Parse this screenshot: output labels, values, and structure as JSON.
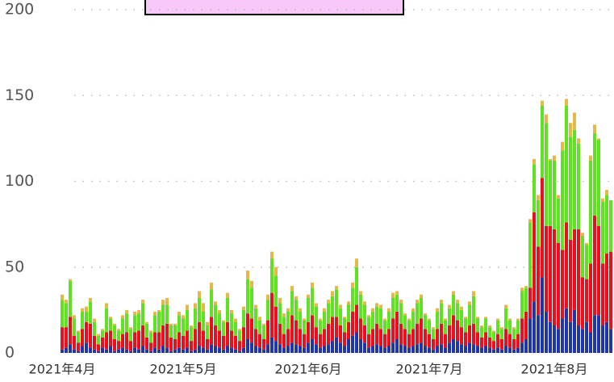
{
  "chart_data": {
    "type": "bar",
    "stacked": true,
    "categories": [
      "2021年4月",
      null,
      null,
      null,
      null,
      null,
      null,
      null,
      null,
      null,
      null,
      null,
      null,
      null,
      null,
      null,
      null,
      null,
      null,
      null,
      null,
      null,
      null,
      null,
      null,
      null,
      null,
      null,
      null,
      null,
      "2021年5月",
      null,
      null,
      null,
      null,
      null,
      null,
      null,
      null,
      null,
      null,
      null,
      null,
      null,
      null,
      null,
      null,
      null,
      null,
      null,
      null,
      null,
      null,
      null,
      null,
      null,
      null,
      null,
      null,
      null,
      null,
      "2021年6月",
      null,
      null,
      null,
      null,
      null,
      null,
      null,
      null,
      null,
      null,
      null,
      null,
      null,
      null,
      null,
      null,
      null,
      null,
      null,
      null,
      null,
      null,
      null,
      null,
      null,
      null,
      null,
      null,
      null,
      "2021年7月",
      null,
      null,
      null,
      null,
      null,
      null,
      null,
      null,
      null,
      null,
      null,
      null,
      null,
      null,
      null,
      null,
      null,
      null,
      null,
      null,
      null,
      null,
      null,
      null,
      null,
      null,
      null,
      null,
      null,
      null,
      "2021年8月",
      null,
      null,
      null,
      null,
      null,
      null,
      null,
      null,
      null,
      null,
      null,
      null,
      null,
      null
    ],
    "series": [
      {
        "color": "#1f35a8",
        "values": [
          2,
          3,
          5,
          2,
          1,
          4,
          6,
          3,
          2,
          1,
          3,
          2,
          4,
          1,
          2,
          3,
          2,
          1,
          3,
          2,
          4,
          2,
          1,
          3,
          2,
          4,
          3,
          1,
          2,
          3,
          2,
          3,
          1,
          2,
          4,
          3,
          2,
          5,
          4,
          3,
          2,
          4,
          3,
          2,
          1,
          3,
          8,
          6,
          4,
          3,
          2,
          5,
          9,
          7,
          5,
          3,
          4,
          6,
          5,
          4,
          3,
          6,
          8,
          5,
          3,
          4,
          5,
          7,
          9,
          6,
          4,
          8,
          10,
          12,
          8,
          6,
          3,
          4,
          5,
          4,
          3,
          4,
          6,
          8,
          5,
          4,
          3,
          4,
          5,
          6,
          4,
          3,
          2,
          4,
          5,
          3,
          6,
          8,
          7,
          5,
          4,
          6,
          5,
          4,
          3,
          4,
          3,
          2,
          3,
          2,
          4,
          3,
          2,
          3,
          6,
          8,
          20,
          30,
          22,
          44,
          24,
          18,
          16,
          14,
          20,
          26,
          18,
          25,
          16,
          14,
          18,
          12,
          22,
          22,
          16,
          18,
          14
        ]
      },
      {
        "color": "#ea0f1c",
        "values": [
          13,
          12,
          16,
          8,
          5,
          10,
          12,
          14,
          8,
          4,
          6,
          10,
          9,
          7,
          5,
          8,
          10,
          6,
          9,
          11,
          12,
          7,
          5,
          9,
          10,
          12,
          14,
          8,
          6,
          9,
          8,
          10,
          6,
          12,
          14,
          10,
          6,
          16,
          12,
          10,
          8,
          14,
          10,
          8,
          6,
          12,
          15,
          14,
          10,
          8,
          6,
          14,
          26,
          20,
          12,
          8,
          10,
          16,
          14,
          10,
          8,
          12,
          14,
          10,
          8,
          10,
          12,
          14,
          12,
          10,
          8,
          10,
          14,
          16,
          12,
          10,
          8,
          10,
          12,
          10,
          8,
          10,
          14,
          16,
          12,
          10,
          8,
          10,
          12,
          14,
          10,
          8,
          6,
          10,
          12,
          8,
          10,
          14,
          12,
          10,
          8,
          10,
          12,
          8,
          6,
          8,
          6,
          5,
          8,
          6,
          10,
          8,
          6,
          8,
          14,
          16,
          18,
          52,
          40,
          58,
          50,
          56,
          56,
          50,
          40,
          50,
          48,
          47,
          56,
          30,
          25,
          40,
          58,
          52,
          36,
          40,
          45
        ]
      },
      {
        "color": "#5ee222",
        "values": [
          16,
          14,
          21,
          10,
          6,
          10,
          6,
          13,
          8,
          5,
          4,
          14,
          7,
          8,
          6,
          9,
          11,
          7,
          10,
          10,
          13,
          8,
          6,
          10,
          12,
          12,
          11,
          7,
          8,
          10,
          10,
          12,
          8,
          12,
          14,
          11,
          8,
          16,
          12,
          10,
          8,
          14,
          10,
          8,
          6,
          10,
          20,
          18,
          12,
          8,
          8,
          12,
          20,
          18,
          12,
          10,
          10,
          14,
          12,
          10,
          8,
          14,
          16,
          12,
          8,
          10,
          12,
          12,
          16,
          10,
          8,
          10,
          14,
          22,
          14,
          12,
          10,
          10,
          10,
          12,
          8,
          10,
          12,
          10,
          12,
          8,
          8,
          10,
          12,
          12,
          8,
          8,
          6,
          10,
          12,
          8,
          10,
          12,
          10,
          10,
          8,
          12,
          16,
          8,
          6,
          8,
          6,
          5,
          8,
          6,
          12,
          8,
          6,
          8,
          16,
          14,
          38,
          28,
          27,
          42,
          60,
          38,
          40,
          26,
          58,
          68,
          60,
          58,
          50,
          24,
          20,
          60,
          48,
          50,
          36,
          34,
          30
        ]
      },
      {
        "color": "#e6b84a",
        "values": [
          3,
          2,
          1,
          2,
          1,
          2,
          3,
          2,
          2,
          1,
          1,
          3,
          1,
          1,
          1,
          2,
          2,
          1,
          2,
          2,
          2,
          1,
          1,
          2,
          1,
          3,
          4,
          1,
          1,
          2,
          2,
          3,
          1,
          3,
          4,
          5,
          2,
          4,
          2,
          2,
          1,
          3,
          2,
          2,
          1,
          2,
          5,
          4,
          2,
          2,
          1,
          3,
          4,
          5,
          3,
          2,
          2,
          3,
          2,
          2,
          1,
          2,
          3,
          2,
          1,
          2,
          2,
          3,
          2,
          2,
          1,
          2,
          3,
          5,
          2,
          2,
          1,
          2,
          2,
          2,
          1,
          2,
          3,
          2,
          2,
          1,
          1,
          2,
          2,
          2,
          1,
          1,
          1,
          2,
          2,
          1,
          2,
          2,
          2,
          2,
          1,
          2,
          3,
          1,
          1,
          1,
          1,
          1,
          1,
          1,
          2,
          1,
          1,
          1,
          2,
          1,
          2,
          3,
          3,
          3,
          5,
          1,
          3,
          2,
          5,
          4,
          8,
          10,
          3,
          2,
          1,
          3,
          5,
          1,
          2,
          3,
          0
        ]
      }
    ],
    "ylim": [
      0,
      200
    ],
    "yticks": [
      0,
      50,
      100,
      150,
      200
    ],
    "grid": true
  }
}
